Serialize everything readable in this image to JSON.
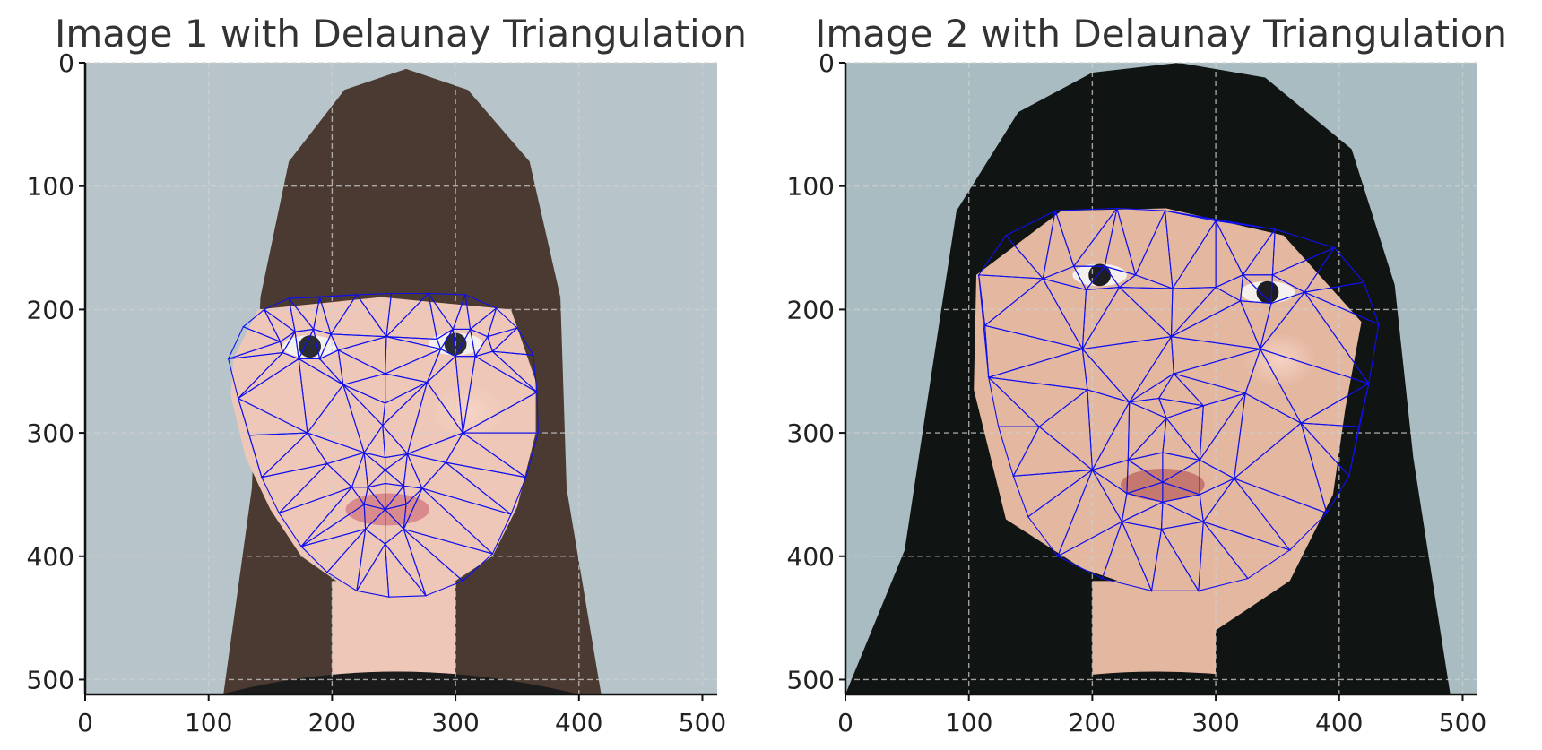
{
  "chart_data": [
    {
      "type": "image",
      "title": "Image 1 with Delaunay Triangulation",
      "xlim": [
        0,
        512
      ],
      "ylim": [
        512,
        0
      ],
      "xticks": [
        0,
        100,
        200,
        300,
        400,
        500
      ],
      "yticks": [
        0,
        100,
        200,
        300,
        400,
        500
      ],
      "grid": true,
      "mesh_color": "#0000ff",
      "image": {
        "background": "#b7c5cb",
        "hair": "#4a3a31",
        "skin": "#eec7b8",
        "lips": "#d98a8c",
        "eyes": "#2c2c33",
        "shirt": "#1b1b1b",
        "hair_shape": [
          [
            112,
            512
          ],
          [
            135,
            345
          ],
          [
            142,
            190
          ],
          [
            165,
            80
          ],
          [
            210,
            22
          ],
          [
            260,
            5
          ],
          [
            310,
            22
          ],
          [
            360,
            80
          ],
          [
            385,
            190
          ],
          [
            390,
            345
          ],
          [
            418,
            512
          ]
        ],
        "face_shape": [
          [
            120,
            240
          ],
          [
            140,
            200
          ],
          [
            240,
            190
          ],
          [
            345,
            200
          ],
          [
            365,
            258
          ],
          [
            365,
            300
          ],
          [
            350,
            360
          ],
          [
            330,
            400
          ],
          [
            300,
            420
          ],
          [
            250,
            432
          ],
          [
            215,
            428
          ],
          [
            175,
            400
          ],
          [
            150,
            362
          ],
          [
            130,
            320
          ],
          [
            118,
            270
          ]
        ],
        "lips_center": [
          245,
          362
        ],
        "eye_centers": [
          [
            182,
            230
          ],
          [
            300,
            228
          ]
        ]
      },
      "landmarks": [
        [
          116,
          240
        ],
        [
          128,
          214
        ],
        [
          145,
          200
        ],
        [
          165,
          191
        ],
        [
          190,
          190
        ],
        [
          220,
          188
        ],
        [
          248,
          187
        ],
        [
          278,
          187
        ],
        [
          308,
          188
        ],
        [
          333,
          199
        ],
        [
          350,
          215
        ],
        [
          363,
          237
        ],
        [
          366,
          267
        ],
        [
          367,
          300
        ],
        [
          357,
          336
        ],
        [
          345,
          366
        ],
        [
          330,
          398
        ],
        [
          306,
          420
        ],
        [
          276,
          432
        ],
        [
          246,
          433
        ],
        [
          220,
          428
        ],
        [
          196,
          413
        ],
        [
          175,
          392
        ],
        [
          157,
          365
        ],
        [
          143,
          336
        ],
        [
          133,
          302
        ],
        [
          124,
          272
        ],
        [
          158,
          226
        ],
        [
          170,
          218
        ],
        [
          185,
          216
        ],
        [
          199,
          220
        ],
        [
          205,
          233
        ],
        [
          190,
          240
        ],
        [
          173,
          240
        ],
        [
          160,
          235
        ],
        [
          285,
          224
        ],
        [
          298,
          216
        ],
        [
          312,
          216
        ],
        [
          326,
          222
        ],
        [
          330,
          234
        ],
        [
          316,
          238
        ],
        [
          300,
          238
        ],
        [
          288,
          232
        ],
        [
          244,
          222
        ],
        [
          243,
          252
        ],
        [
          243,
          276
        ],
        [
          241,
          294
        ],
        [
          226,
          316
        ],
        [
          243,
          320
        ],
        [
          261,
          317
        ],
        [
          216,
          344
        ],
        [
          229,
          344
        ],
        [
          243,
          341
        ],
        [
          258,
          343
        ],
        [
          273,
          345
        ],
        [
          260,
          358
        ],
        [
          243,
          362
        ],
        [
          226,
          358
        ],
        [
          243,
          330
        ],
        [
          227,
          378
        ],
        [
          258,
          378
        ],
        [
          243,
          390
        ],
        [
          180,
          300
        ],
        [
          306,
          300
        ],
        [
          196,
          325
        ],
        [
          292,
          324
        ],
        [
          209,
          261
        ],
        [
          277,
          259
        ]
      ],
      "triangles_count": 128
    },
    {
      "type": "image",
      "title": "Image 2 with Delaunay Triangulation",
      "xlim": [
        0,
        512
      ],
      "ylim": [
        512,
        0
      ],
      "xticks": [
        0,
        100,
        200,
        300,
        400,
        500
      ],
      "yticks": [
        0,
        100,
        200,
        300,
        400,
        500
      ],
      "grid": true,
      "mesh_color": "#0000ff",
      "image": {
        "background": "#a8bcc2",
        "hair": "#101412",
        "skin": "#e4b7a1",
        "lips": "#c4786f",
        "eyes": "#1d1d22",
        "shirt": "#101412",
        "hair_shape": [
          [
            0,
            512
          ],
          [
            48,
            395
          ],
          [
            70,
            250
          ],
          [
            90,
            120
          ],
          [
            140,
            40
          ],
          [
            200,
            8
          ],
          [
            270,
            0
          ],
          [
            340,
            12
          ],
          [
            410,
            70
          ],
          [
            445,
            180
          ],
          [
            460,
            320
          ],
          [
            490,
            512
          ]
        ],
        "face_shape": [
          [
            106,
            172
          ],
          [
            175,
            120
          ],
          [
            260,
            118
          ],
          [
            355,
            140
          ],
          [
            418,
            210
          ],
          [
            405,
            280
          ],
          [
            395,
            350
          ],
          [
            360,
            420
          ],
          [
            300,
            460
          ],
          [
            250,
            430
          ],
          [
            192,
            410
          ],
          [
            130,
            370
          ],
          [
            104,
            265
          ]
        ],
        "lips_center": [
          257,
          342
        ],
        "eye_centers": [
          [
            206,
            172
          ],
          [
            342,
            186
          ]
        ]
      },
      "landmarks": [
        [
          108,
          172
        ],
        [
          113,
          213
        ],
        [
          116,
          255
        ],
        [
          124,
          295
        ],
        [
          136,
          335
        ],
        [
          148,
          368
        ],
        [
          172,
          400
        ],
        [
          208,
          418
        ],
        [
          248,
          428
        ],
        [
          286,
          428
        ],
        [
          326,
          418
        ],
        [
          360,
          395
        ],
        [
          390,
          365
        ],
        [
          408,
          335
        ],
        [
          416,
          295
        ],
        [
          424,
          260
        ],
        [
          432,
          212
        ],
        [
          420,
          178
        ],
        [
          396,
          150
        ],
        [
          348,
          135
        ],
        [
          300,
          128
        ],
        [
          259,
          120
        ],
        [
          220,
          118
        ],
        [
          170,
          120
        ],
        [
          130,
          140
        ],
        [
          160,
          175
        ],
        [
          185,
          165
        ],
        [
          210,
          165
        ],
        [
          235,
          172
        ],
        [
          222,
          182
        ],
        [
          195,
          184
        ],
        [
          300,
          182
        ],
        [
          322,
          172
        ],
        [
          346,
          172
        ],
        [
          372,
          186
        ],
        [
          345,
          195
        ],
        [
          320,
          193
        ],
        [
          265,
          183
        ],
        [
          264,
          222
        ],
        [
          266,
          252
        ],
        [
          254,
          272
        ],
        [
          230,
          275
        ],
        [
          260,
          288
        ],
        [
          290,
          278
        ],
        [
          200,
          330
        ],
        [
          229,
          322
        ],
        [
          257,
          316
        ],
        [
          287,
          322
        ],
        [
          315,
          337
        ],
        [
          287,
          350
        ],
        [
          257,
          356
        ],
        [
          228,
          349
        ],
        [
          257,
          340
        ],
        [
          224,
          372
        ],
        [
          256,
          378
        ],
        [
          290,
          372
        ],
        [
          157,
          295
        ],
        [
          369,
          292
        ],
        [
          192,
          232
        ],
        [
          336,
          232
        ],
        [
          196,
          265
        ],
        [
          324,
          268
        ]
      ],
      "triangles_count": 118
    }
  ]
}
